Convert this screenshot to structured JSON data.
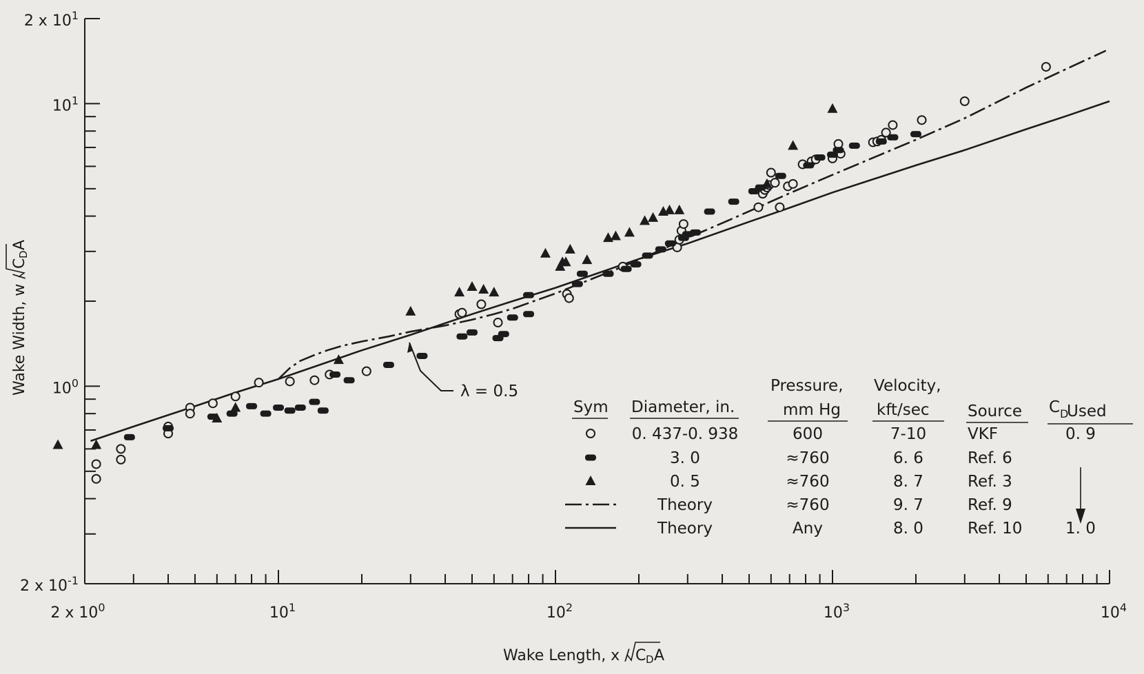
{
  "chart_data": {
    "type": "scatter",
    "title": "",
    "xlabel": "Wake Length,  x /",
    "xlabel_sqrt": "C",
    "xlabel_sub": "D",
    "xlabel_tail": "A",
    "ylabel": "Wake Width,  w /",
    "ylabel_sqrt": "C",
    "ylabel_sub": "D",
    "ylabel_tail": "A",
    "x_scale": "log",
    "y_scale": "log",
    "xlim": [
      2,
      10000
    ],
    "ylim": [
      0.2,
      20
    ],
    "x_tick_labels": [
      {
        "value": 2,
        "mant": "2 x 10",
        "exp": "0"
      },
      {
        "value": 10,
        "mant": "10",
        "exp": "1"
      },
      {
        "value": 100,
        "mant": "10",
        "exp": "2"
      },
      {
        "value": 1000,
        "mant": "10",
        "exp": "3"
      },
      {
        "value": 10000,
        "mant": "10",
        "exp": "4"
      }
    ],
    "y_tick_labels": [
      {
        "value": 0.2,
        "mant": "2 x 10",
        "exp": "-1"
      },
      {
        "value": 1,
        "mant": "10",
        "exp": "0"
      },
      {
        "value": 10,
        "mant": "10",
        "exp": "1"
      },
      {
        "value": 20,
        "mant": "2 x 10",
        "exp": "1"
      }
    ],
    "annotation": "λ = 0.5",
    "legend": {
      "headers": {
        "sym": "Sym",
        "diameter": "Diameter, in.",
        "pressure1": "Pressure,",
        "pressure2": "mm Hg",
        "velocity1": "Velocity,",
        "velocity2": "kft/sec",
        "source": "Source",
        "cd_main": "C",
        "cd_sub": "D",
        "cd_tail": " Used"
      },
      "rows": [
        {
          "marker": "open-circle",
          "diameter": "0. 437-0. 938",
          "pressure": "600",
          "velocity": "7-10",
          "source": "VKF",
          "cd": "0. 9"
        },
        {
          "marker": "filled-bar",
          "diameter": "3. 0",
          "pressure": "≈760",
          "velocity": "6. 6",
          "source": "Ref. 6",
          "cd": ""
        },
        {
          "marker": "filled-triangle",
          "diameter": "0. 5",
          "pressure": "≈760",
          "velocity": "8. 7",
          "source": "Ref. 3",
          "cd": ""
        },
        {
          "marker": "dash-dot-line",
          "diameter": "Theory",
          "pressure": "≈760",
          "velocity": "9. 7",
          "source": "Ref. 9",
          "cd": ""
        },
        {
          "marker": "solid-line",
          "diameter": "Theory",
          "pressure": "Any",
          "velocity": "8. 0",
          "source": "Ref. 10",
          "cd": "1. 0"
        }
      ]
    },
    "series": [
      {
        "name": "0. 437-0. 938",
        "marker": "open-circle",
        "points": [
          [
            2.2,
            0.47
          ],
          [
            2.2,
            0.53
          ],
          [
            2.7,
            0.6
          ],
          [
            2.7,
            0.55
          ],
          [
            4,
            0.68
          ],
          [
            4,
            0.72
          ],
          [
            4.8,
            0.84
          ],
          [
            4.8,
            0.8
          ],
          [
            5.8,
            0.87
          ],
          [
            7,
            0.92
          ],
          [
            8.5,
            1.03
          ],
          [
            11,
            1.04
          ],
          [
            13.5,
            1.05
          ],
          [
            15.3,
            1.1
          ],
          [
            20.8,
            1.13
          ],
          [
            45,
            1.8
          ],
          [
            46,
            1.82
          ],
          [
            54,
            1.95
          ],
          [
            62,
            1.68
          ],
          [
            110,
            2.12
          ],
          [
            112,
            2.05
          ],
          [
            175,
            2.65
          ],
          [
            275,
            3.1
          ],
          [
            280,
            3.3
          ],
          [
            285,
            3.55
          ],
          [
            290,
            3.75
          ],
          [
            540,
            4.3
          ],
          [
            560,
            4.8
          ],
          [
            570,
            4.95
          ],
          [
            580,
            5.05
          ],
          [
            590,
            5.15
          ],
          [
            620,
            5.25
          ],
          [
            600,
            5.7
          ],
          [
            645,
            4.3
          ],
          [
            690,
            5.1
          ],
          [
            720,
            5.2
          ],
          [
            780,
            6.1
          ],
          [
            840,
            6.25
          ],
          [
            870,
            6.35
          ],
          [
            1000,
            6.4
          ],
          [
            1070,
            6.65
          ],
          [
            1050,
            7.2
          ],
          [
            1400,
            7.3
          ],
          [
            1450,
            7.35
          ],
          [
            1500,
            7.45
          ],
          [
            1560,
            7.9
          ],
          [
            1650,
            8.4
          ],
          [
            2100,
            8.75
          ],
          [
            3000,
            10.2
          ],
          [
            5900,
            13.5
          ]
        ]
      },
      {
        "name": "3. 0",
        "marker": "filled-bar",
        "points": [
          [
            2.9,
            0.66
          ],
          [
            4,
            0.71
          ],
          [
            5.8,
            0.78
          ],
          [
            6.8,
            0.8
          ],
          [
            8,
            0.85
          ],
          [
            9,
            0.8
          ],
          [
            10,
            0.84
          ],
          [
            11,
            0.82
          ],
          [
            12,
            0.84
          ],
          [
            13.5,
            0.88
          ],
          [
            14.5,
            0.82
          ],
          [
            16,
            1.1
          ],
          [
            18,
            1.05
          ],
          [
            25,
            1.19
          ],
          [
            33,
            1.28
          ],
          [
            46,
            1.5
          ],
          [
            50,
            1.55
          ],
          [
            62,
            1.48
          ],
          [
            65,
            1.53
          ],
          [
            70,
            1.75
          ],
          [
            80,
            1.8
          ],
          [
            80,
            2.1
          ],
          [
            120,
            2.3
          ],
          [
            125,
            2.5
          ],
          [
            155,
            2.5
          ],
          [
            180,
            2.6
          ],
          [
            195,
            2.7
          ],
          [
            215,
            2.9
          ],
          [
            240,
            3.05
          ],
          [
            260,
            3.2
          ],
          [
            290,
            3.35
          ],
          [
            300,
            3.45
          ],
          [
            320,
            3.5
          ],
          [
            360,
            4.15
          ],
          [
            440,
            4.5
          ],
          [
            520,
            4.9
          ],
          [
            550,
            5.05
          ],
          [
            650,
            5.55
          ],
          [
            820,
            6.05
          ],
          [
            900,
            6.45
          ],
          [
            1000,
            6.6
          ],
          [
            1050,
            6.85
          ],
          [
            1200,
            7.1
          ],
          [
            1500,
            7.35
          ],
          [
            1650,
            7.6
          ],
          [
            2000,
            7.8
          ]
        ]
      },
      {
        "name": "0. 5",
        "marker": "filled-triangle",
        "points": [
          [
            1.6,
            0.62
          ],
          [
            2.2,
            0.62
          ],
          [
            6,
            0.77
          ],
          [
            7,
            0.84
          ],
          [
            16.5,
            1.24
          ],
          [
            30,
            1.84
          ],
          [
            45,
            2.15
          ],
          [
            50,
            2.25
          ],
          [
            55,
            2.2
          ],
          [
            60,
            2.15
          ],
          [
            92,
            2.95
          ],
          [
            104,
            2.65
          ],
          [
            106,
            2.75
          ],
          [
            109,
            2.75
          ],
          [
            113,
            3.05
          ],
          [
            130,
            2.8
          ],
          [
            155,
            3.35
          ],
          [
            165,
            3.4
          ],
          [
            185,
            3.5
          ],
          [
            210,
            3.85
          ],
          [
            225,
            3.95
          ],
          [
            245,
            4.15
          ],
          [
            258,
            4.2
          ],
          [
            280,
            4.2
          ],
          [
            580,
            5.2
          ],
          [
            720,
            7.1
          ],
          [
            1000,
            9.6
          ]
        ]
      },
      {
        "name": "Theory",
        "style": "dash-dot",
        "points": [
          [
            10,
            1.06
          ],
          [
            11,
            1.16
          ],
          [
            12,
            1.23
          ],
          [
            13.5,
            1.29
          ],
          [
            15,
            1.34
          ],
          [
            17,
            1.39
          ],
          [
            20,
            1.44
          ],
          [
            25,
            1.5
          ],
          [
            30,
            1.56
          ],
          [
            40,
            1.64
          ],
          [
            50,
            1.72
          ],
          [
            60,
            1.8
          ],
          [
            70,
            1.88
          ],
          [
            80,
            1.97
          ],
          [
            100,
            2.13
          ],
          [
            130,
            2.36
          ],
          [
            170,
            2.62
          ],
          [
            220,
            2.92
          ],
          [
            300,
            3.35
          ],
          [
            400,
            3.78
          ],
          [
            500,
            4.16
          ],
          [
            700,
            4.82
          ],
          [
            1000,
            5.6
          ],
          [
            1500,
            6.62
          ],
          [
            2000,
            7.45
          ],
          [
            3000,
            8.88
          ],
          [
            5000,
            11.4
          ],
          [
            9700,
            15.4
          ]
        ]
      },
      {
        "name": "Theory",
        "style": "solid",
        "points": [
          [
            2.1,
            0.64
          ],
          [
            3,
            0.72
          ],
          [
            5,
            0.85
          ],
          [
            7,
            0.95
          ],
          [
            10,
            1.06
          ],
          [
            20,
            1.34
          ],
          [
            30,
            1.52
          ],
          [
            50,
            1.8
          ],
          [
            70,
            2
          ],
          [
            100,
            2.23
          ],
          [
            200,
            2.82
          ],
          [
            300,
            3.2
          ],
          [
            500,
            3.82
          ],
          [
            700,
            4.28
          ],
          [
            1000,
            4.85
          ],
          [
            2000,
            6.05
          ],
          [
            3000,
            6.85
          ],
          [
            5000,
            8.12
          ],
          [
            7000,
            9.05
          ],
          [
            10000,
            10.2
          ]
        ]
      }
    ]
  }
}
